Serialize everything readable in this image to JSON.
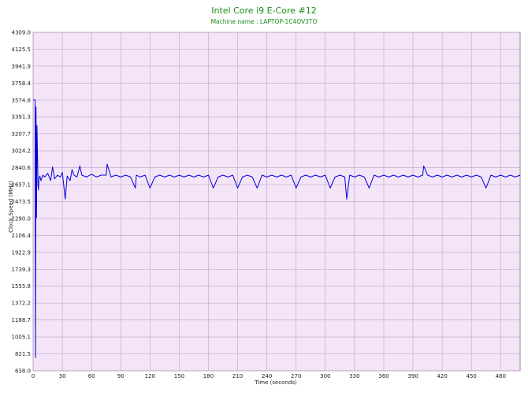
{
  "chart_data": {
    "type": "line",
    "title": "Intel Core i9 E-Core #12",
    "subtitle": "Machine name : LAPTOP-1C4OV3TO",
    "xlabel": "Time (seconds)",
    "ylabel": "Clock Speed (MHz)",
    "xlim": [
      0,
      500
    ],
    "ylim": [
      638.0,
      4309.0
    ],
    "x_ticks": [
      "0",
      "30",
      "60",
      "90",
      "120",
      "150",
      "180",
      "210",
      "240",
      "270",
      "300",
      "330",
      "360",
      "390",
      "420",
      "450",
      "480"
    ],
    "y_ticks": [
      "638.0",
      "821.5",
      "1005.1",
      "1188.7",
      "1372.2",
      "1555.8",
      "1739.3",
      "1922.9",
      "2106.4",
      "2290.0",
      "2473.5",
      "2657.1",
      "2840.6",
      "3024.2",
      "3207.7",
      "3391.3",
      "3574.8",
      "3758.4",
      "3941.9",
      "4125.5",
      "4309.0"
    ],
    "grid": true,
    "colors": {
      "background": "#f4e4f8",
      "grid": "#c9a9cc",
      "line": "#0000dd",
      "title": "#1a8f1a"
    },
    "series": [
      {
        "x": [
          0,
          1,
          2,
          2.5,
          3,
          3.5,
          4,
          4.5,
          5,
          5.5,
          6,
          7,
          8,
          10,
          12,
          15,
          18,
          20,
          22,
          25,
          28,
          30,
          33,
          35,
          38,
          40,
          42,
          45,
          48,
          50,
          55,
          60,
          65,
          70,
          75,
          76,
          80,
          85,
          90,
          95,
          100,
          105,
          106,
          110,
          115,
          120,
          125,
          130,
          135,
          140,
          145,
          150,
          155,
          160,
          165,
          170,
          175,
          180,
          185,
          190,
          195,
          200,
          205,
          210,
          215,
          220,
          225,
          230,
          235,
          240,
          245,
          250,
          255,
          260,
          265,
          270,
          275,
          280,
          285,
          290,
          295,
          300,
          305,
          310,
          315,
          320,
          322,
          325,
          330,
          335,
          340,
          345,
          350,
          355,
          360,
          365,
          370,
          375,
          380,
          385,
          390,
          395,
          400,
          401,
          405,
          410,
          415,
          420,
          425,
          430,
          435,
          440,
          445,
          450,
          455,
          460,
          465,
          470,
          475,
          480,
          485,
          490,
          495,
          500
        ],
        "y": [
          3574.8,
          3574.8,
          3574.8,
          780,
          3500,
          2300,
          3300,
          3000,
          2650,
          2600,
          2720,
          2750,
          2700,
          2760,
          2740,
          2780,
          2700,
          2850,
          2720,
          2760,
          2740,
          2790,
          2500,
          2750,
          2700,
          2820,
          2760,
          2740,
          2860,
          2760,
          2740,
          2770,
          2740,
          2760,
          2760,
          2880,
          2740,
          2760,
          2740,
          2760,
          2740,
          2620,
          2760,
          2740,
          2760,
          2620,
          2740,
          2760,
          2740,
          2760,
          2740,
          2760,
          2740,
          2760,
          2740,
          2760,
          2740,
          2760,
          2620,
          2740,
          2760,
          2740,
          2760,
          2620,
          2740,
          2760,
          2740,
          2620,
          2760,
          2740,
          2760,
          2740,
          2760,
          2740,
          2760,
          2620,
          2740,
          2760,
          2740,
          2760,
          2740,
          2760,
          2620,
          2740,
          2760,
          2740,
          2500,
          2760,
          2740,
          2760,
          2740,
          2620,
          2760,
          2740,
          2760,
          2740,
          2760,
          2740,
          2760,
          2740,
          2760,
          2740,
          2760,
          2860,
          2760,
          2740,
          2760,
          2740,
          2760,
          2740,
          2760,
          2740,
          2760,
          2740,
          2760,
          2740,
          2620,
          2760,
          2740,
          2760,
          2740,
          2760,
          2740,
          2760
        ]
      }
    ]
  }
}
